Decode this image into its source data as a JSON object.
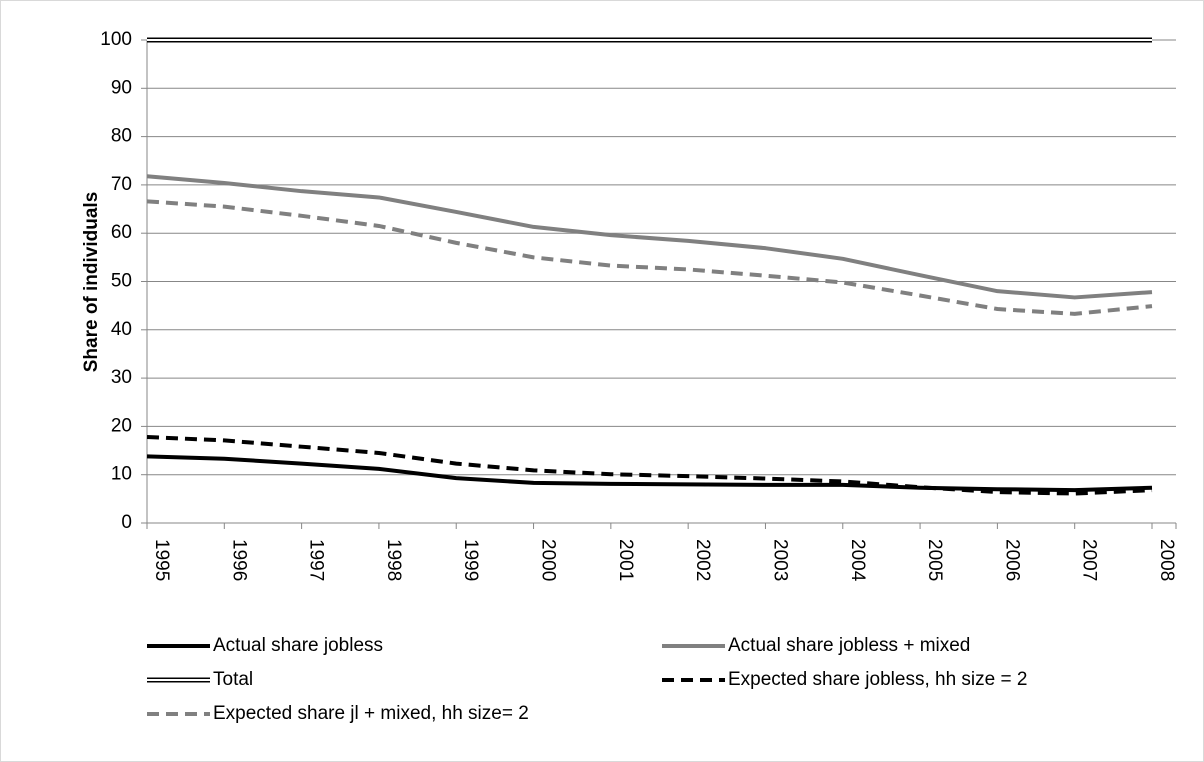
{
  "chart_data": {
    "type": "line",
    "y_label": "Share of individuals",
    "categories": [
      "1995",
      "1996",
      "1997",
      "1998",
      "1999",
      "2000",
      "2001",
      "2002",
      "2003",
      "2004",
      "2005",
      "2006",
      "2007",
      "2008"
    ],
    "ylim": [
      0,
      100
    ],
    "yticks": [
      0,
      10,
      20,
      30,
      40,
      50,
      60,
      70,
      80,
      90,
      100
    ],
    "grid": true,
    "series": [
      {
        "name": "Actual share jobless",
        "color": "#000000",
        "style": "solid",
        "values": [
          13.8,
          13.3,
          12.3,
          11.2,
          9.3,
          8.3,
          8.1,
          8.0,
          7.9,
          7.9,
          7.3,
          7.0,
          6.8,
          7.3
        ]
      },
      {
        "name": "Actual share jobless + mixed",
        "color": "#808080",
        "style": "solid",
        "values": [
          71.8,
          70.4,
          68.7,
          67.4,
          64.4,
          61.3,
          59.6,
          58.4,
          56.9,
          54.7,
          51.3,
          48.0,
          46.7,
          47.8
        ]
      },
      {
        "name": "Total",
        "color": "#000000",
        "style": "double",
        "values": [
          100,
          100,
          100,
          100,
          100,
          100,
          100,
          100,
          100,
          100,
          100,
          100,
          100,
          100
        ]
      },
      {
        "name": "Expected share jobless, hh size = 2",
        "color": "#000000",
        "style": "dashed",
        "values": [
          17.8,
          17.1,
          15.8,
          14.5,
          12.3,
          10.9,
          10.1,
          9.7,
          9.2,
          8.6,
          7.4,
          6.4,
          6.1,
          6.8
        ]
      },
      {
        "name": "Expected share jl + mixed, hh size= 2",
        "color": "#808080",
        "style": "dashed",
        "values": [
          66.6,
          65.5,
          63.6,
          61.5,
          58.0,
          55.0,
          53.3,
          52.5,
          51.2,
          49.8,
          47.1,
          44.3,
          43.3,
          44.9
        ]
      }
    ]
  }
}
